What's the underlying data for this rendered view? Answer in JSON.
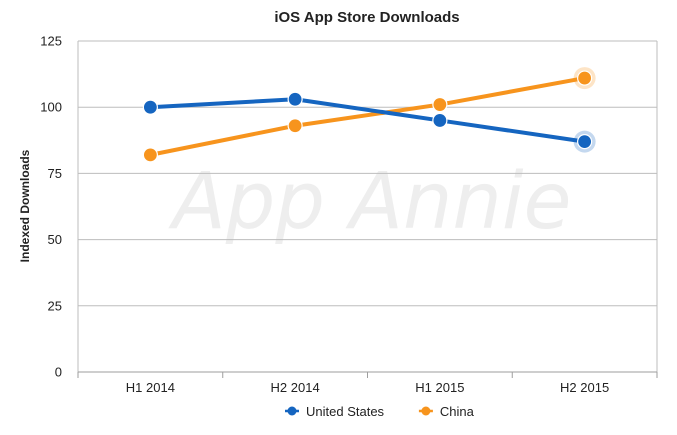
{
  "chart_data": {
    "type": "line",
    "title": "iOS App Store Downloads",
    "xlabel": "",
    "ylabel": "Indexed Downloads",
    "categories": [
      "H1 2014",
      "H2 2014",
      "H1 2015",
      "H2 2015"
    ],
    "ylim": [
      0,
      125
    ],
    "yticks": [
      0,
      25,
      50,
      75,
      100,
      125
    ],
    "grid": true,
    "legend_position": "bottom-center",
    "watermark": "App Annie",
    "series": [
      {
        "name": "United States",
        "color": "#1565c0",
        "values": [
          100,
          103,
          95,
          87
        ]
      },
      {
        "name": "China",
        "color": "#f7941d",
        "values": [
          82,
          93,
          101,
          111
        ]
      }
    ]
  }
}
